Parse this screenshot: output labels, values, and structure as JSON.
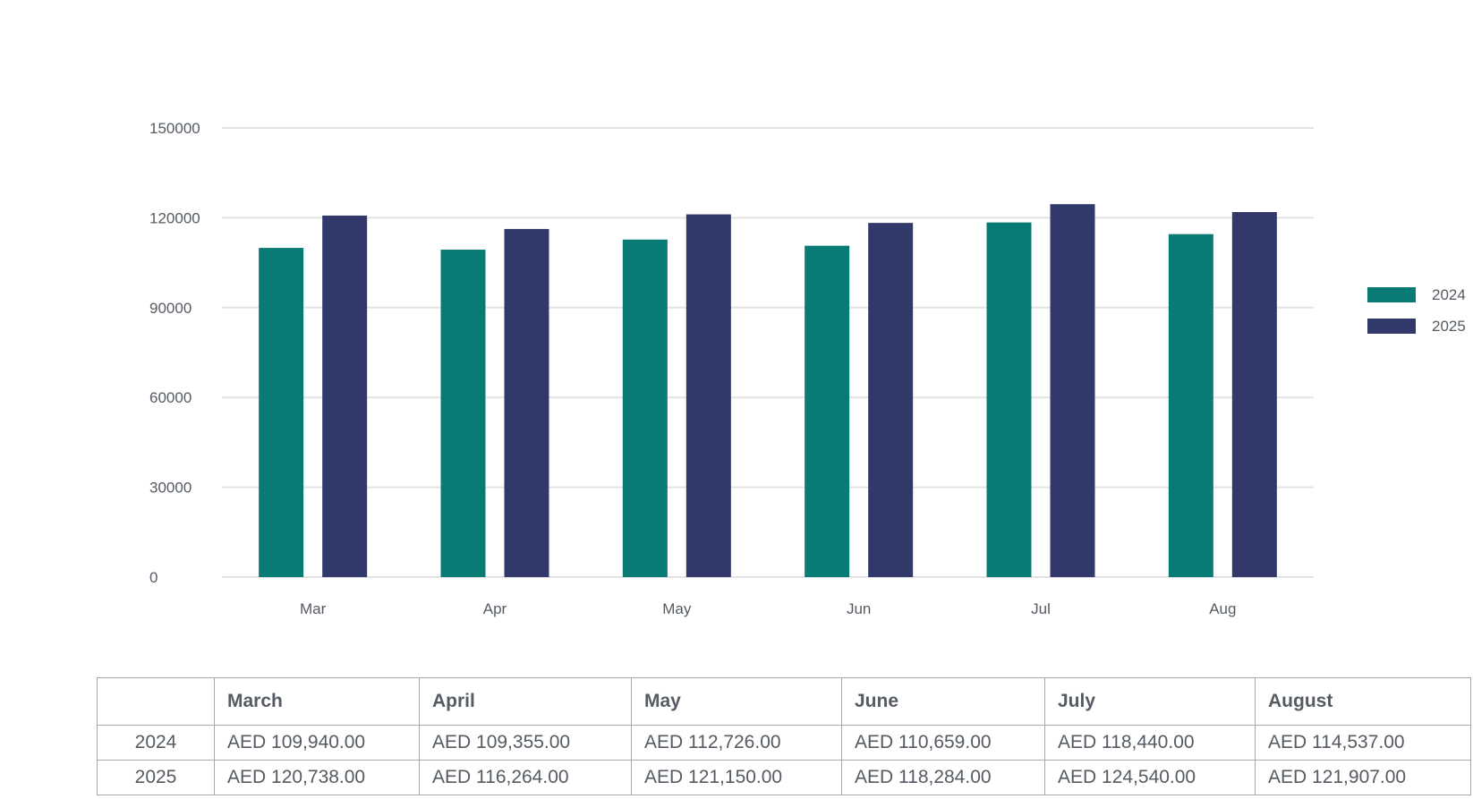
{
  "chart_data": {
    "type": "bar",
    "categories": [
      "Mar",
      "Apr",
      "May",
      "Jun",
      "Jul",
      "Aug"
    ],
    "series": [
      {
        "name": "2024",
        "color": "#087b74",
        "values": [
          109940,
          109355,
          112726,
          110659,
          118440,
          114537
        ]
      },
      {
        "name": "2025",
        "color": "#30396a",
        "values": [
          120738,
          116264,
          121150,
          118284,
          124540,
          121907
        ]
      }
    ],
    "yticks": [
      "0",
      "30000",
      "60000",
      "90000",
      "120000",
      "150000"
    ],
    "ylim": [
      0,
      150000
    ],
    "grid": true,
    "legend_position": "right",
    "title": "",
    "xlabel": "",
    "ylabel": ""
  },
  "table": {
    "headers": [
      "",
      "March",
      "April",
      "May",
      "June",
      "July",
      "August"
    ],
    "rows": [
      {
        "label": "2024",
        "cells": [
          "AED 109,940.00",
          "AED 109,355.00",
          "AED 112,726.00",
          "AED 110,659.00",
          "AED 118,440.00",
          "AED 114,537.00"
        ]
      },
      {
        "label": "2025",
        "cells": [
          "AED 120,738.00",
          "AED 116,264.00",
          "AED 121,150.00",
          "AED 118,284.00",
          "AED 124,540.00",
          "AED 121,907.00"
        ]
      }
    ]
  }
}
